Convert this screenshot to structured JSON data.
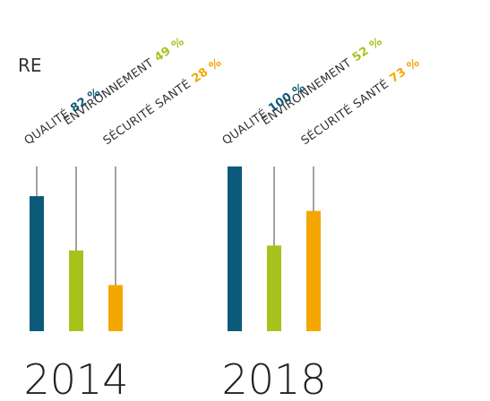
{
  "chart_data": {
    "type": "bar",
    "title": "RE",
    "categories": [
      "2014",
      "2018"
    ],
    "series": [
      {
        "name": "QUALITÉ",
        "color": "#0b5a79",
        "values": [
          82,
          100
        ],
        "value_labels": [
          "82 %",
          "100 %"
        ]
      },
      {
        "name": "ENVIRONNEMENT",
        "color": "#a6c31b",
        "values": [
          49,
          52
        ],
        "value_labels": [
          "49 %",
          "52 %"
        ]
      },
      {
        "name": "SÉCURITÉ SANTÉ",
        "color": "#f4a700",
        "values": [
          28,
          73
        ],
        "value_labels": [
          "28 %",
          "73 %"
        ]
      }
    ],
    "ylim": [
      0,
      100
    ]
  }
}
